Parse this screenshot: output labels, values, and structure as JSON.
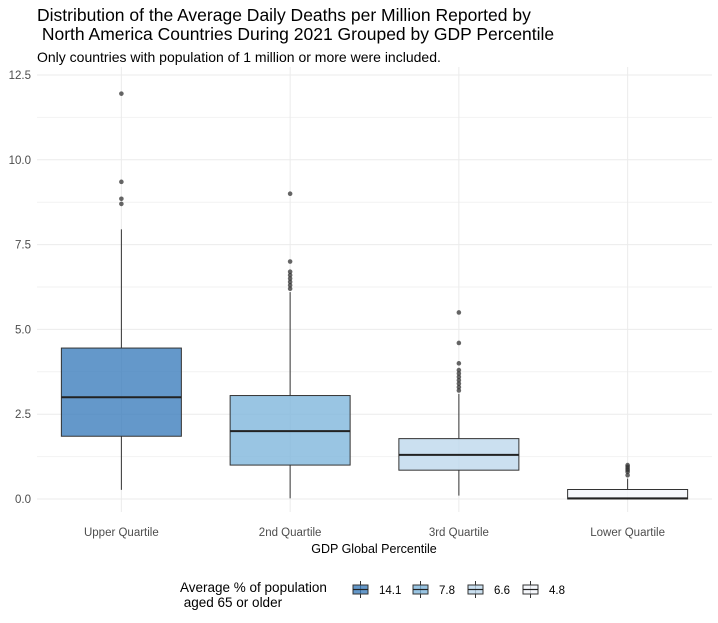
{
  "chart_data": {
    "type": "box",
    "title_line1": "Distribution of the Average Daily Deaths per Million Reported by",
    "title_line2": " North America Countries During 2021 Grouped by GDP Percentile",
    "subtitle": "Only countries with population of 1 million or more were included.",
    "xlabel": "GDP Global Percentile",
    "ylabel": "",
    "ylim": [
      -0.5,
      12.75
    ],
    "yticks": [
      0.0,
      2.5,
      5.0,
      7.5,
      10.0,
      12.5
    ],
    "ytick_labels": [
      "0.0",
      "2.5",
      "5.0",
      "7.5",
      "10.0",
      "12.5"
    ],
    "grid": true,
    "legend_position": "bottom",
    "legend_title_line1": "Average % of population",
    "legend_title_line2": " aged 65 or older",
    "categories": [
      "Upper Quartile",
      "2nd Quartile",
      "3rd Quartile",
      "Lower Quartile"
    ],
    "boxes": [
      {
        "category": "Upper Quartile",
        "legend": "14.1",
        "color": "#3d7ebd",
        "whisker_low": 0.27,
        "q1": 1.85,
        "median": 3.0,
        "q3": 4.45,
        "whisker_high": 7.95,
        "outliers": [
          8.7,
          8.85,
          9.35,
          11.95
        ]
      },
      {
        "category": "2nd Quartile",
        "legend": "7.8",
        "color": "#7fb6dc",
        "whisker_low": 0.02,
        "q1": 1.0,
        "median": 2.0,
        "q3": 3.05,
        "whisker_high": 6.1,
        "outliers": [
          6.2,
          6.3,
          6.4,
          6.5,
          6.6,
          6.7,
          7.0,
          9.0
        ]
      },
      {
        "category": "3rd Quartile",
        "legend": "6.6",
        "color": "#bed8ec",
        "whisker_low": 0.1,
        "q1": 0.85,
        "median": 1.3,
        "q3": 1.78,
        "whisker_high": 3.1,
        "outliers": [
          3.2,
          3.3,
          3.4,
          3.5,
          3.6,
          3.7,
          3.8,
          4.0,
          4.6,
          5.5
        ]
      },
      {
        "category": "Lower Quartile",
        "legend": "4.8",
        "color": "#f4f6fb",
        "whisker_low": 0.0,
        "q1": 0.0,
        "median": 0.02,
        "q3": 0.28,
        "whisker_high": 0.6,
        "outliers": [
          0.7,
          0.8,
          0.85,
          0.9,
          0.95,
          1.0
        ]
      }
    ]
  }
}
